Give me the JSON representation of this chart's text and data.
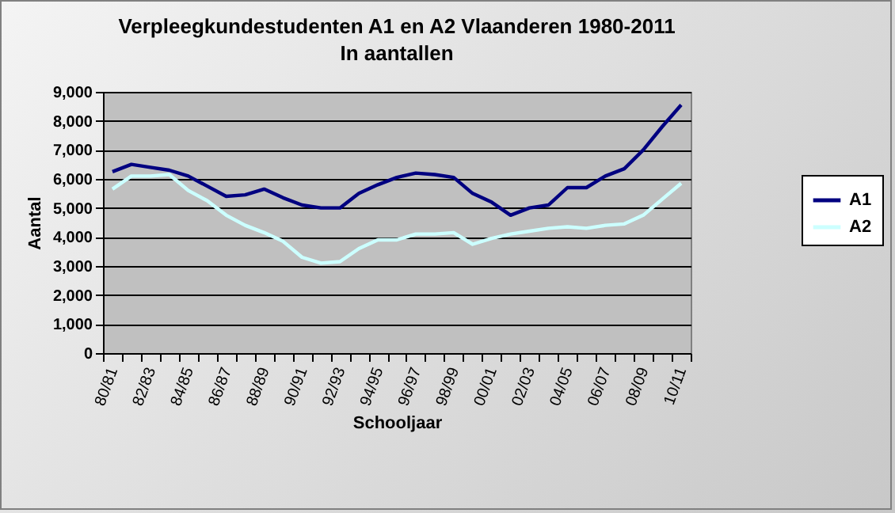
{
  "chart_data": {
    "type": "line",
    "title": "Verpleegkundestudenten A1 en A2 Vlaanderen 1980-2011",
    "subtitle": "In aantallen",
    "xlabel": "Schooljaar",
    "ylabel": "Aantal",
    "categories": [
      "80/81",
      null,
      "82/83",
      null,
      "84/85",
      null,
      "86/87",
      null,
      "88/89",
      null,
      "90/91",
      null,
      "92/93",
      null,
      "94/95",
      null,
      "96/97",
      null,
      "98/99",
      null,
      "00/01",
      null,
      "02/03",
      null,
      "04/05",
      null,
      "06/07",
      null,
      "08/09",
      null,
      "10/11"
    ],
    "series": [
      {
        "name": "A1",
        "color": "#000080",
        "values": [
          6250,
          6500,
          6400,
          6300,
          6100,
          5750,
          5400,
          5450,
          5650,
          5350,
          5100,
          5000,
          5000,
          5500,
          5800,
          6050,
          6200,
          6150,
          6050,
          5500,
          5200,
          4750,
          5000,
          5100,
          5700,
          5700,
          6100,
          6350,
          7000,
          7800,
          8550
        ]
      },
      {
        "name": "A2",
        "color": "#ccffff",
        "values": [
          5650,
          6100,
          6100,
          6150,
          5600,
          5250,
          4750,
          4400,
          4150,
          3850,
          3300,
          3100,
          3150,
          3600,
          3900,
          3900,
          4100,
          4100,
          4150,
          3750,
          3950,
          4100,
          4200,
          4300,
          4350,
          4300,
          4400,
          4450,
          4750,
          5300,
          5850
        ]
      }
    ],
    "ylim": [
      0,
      9000
    ],
    "yticks": [
      0,
      {
        "value": 1000,
        "label": "1,000"
      },
      {
        "value": 2000,
        "label": "2,000"
      },
      {
        "value": 3000,
        "label": "3,000"
      },
      {
        "value": 4000,
        "label": "4,000"
      },
      {
        "value": 5000,
        "label": "5,000"
      },
      {
        "value": 6000,
        "label": "6,000"
      },
      {
        "value": 7000,
        "label": "7,000"
      },
      {
        "value": 8000,
        "label": "8,000"
      },
      {
        "value": 9000,
        "label": "9,000"
      }
    ],
    "grid": "y",
    "legend": "right",
    "marker": "none",
    "line_style": "solid"
  }
}
